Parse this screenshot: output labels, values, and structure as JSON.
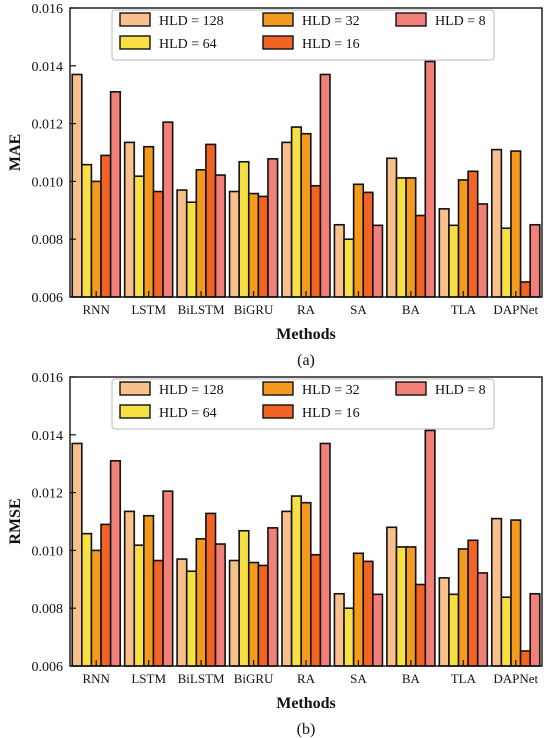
{
  "colors": {
    "HLD = 128": "#F8C08A",
    "HLD = 64": "#F6E044",
    "HLD = 32": "#F49A1C",
    "HLD = 16": "#F26424",
    "HLD = 8": "#F08078"
  },
  "chart_data": [
    {
      "type": "bar",
      "panel_label": "(a)",
      "xlabel": "Methods",
      "ylabel": "MAE",
      "ylim": [
        0.006,
        0.016
      ],
      "yticks": [
        "0.006",
        "0.008",
        "0.010",
        "0.012",
        "0.014",
        "0.016"
      ],
      "legend_position": "top",
      "categories": [
        "RNN",
        "LSTM",
        "BiLSTM",
        "BiGRU",
        "RA",
        "SA",
        "BA",
        "TLA",
        "DAPNet"
      ],
      "series": [
        {
          "name": "HLD = 128",
          "values": [
            0.0137,
            0.01135,
            0.0097,
            0.00965,
            0.01135,
            0.0085,
            0.0108,
            0.00905,
            0.0111
          ]
        },
        {
          "name": "HLD = 64",
          "values": [
            0.01058,
            0.01018,
            0.00928,
            0.01068,
            0.01188,
            0.008,
            0.01012,
            0.00848,
            0.00838
          ]
        },
        {
          "name": "HLD = 32",
          "values": [
            0.01,
            0.0112,
            0.0104,
            0.00958,
            0.01165,
            0.0099,
            0.01012,
            0.01005,
            0.01105
          ]
        },
        {
          "name": "HLD = 16",
          "values": [
            0.0109,
            0.00965,
            0.01128,
            0.00948,
            0.00985,
            0.00962,
            0.00882,
            0.01035,
            0.00652
          ]
        },
        {
          "name": "HLD = 8",
          "values": [
            0.0131,
            0.01205,
            0.01022,
            0.01078,
            0.0137,
            0.00848,
            0.01415,
            0.00922,
            0.0085
          ]
        }
      ]
    },
    {
      "type": "bar",
      "panel_label": "(b)",
      "xlabel": "Methods",
      "ylabel": "RMSE",
      "ylim": [
        0.006,
        0.016
      ],
      "yticks": [
        "0.006",
        "0.008",
        "0.010",
        "0.012",
        "0.014",
        "0.016"
      ],
      "legend_position": "top",
      "categories": [
        "RNN",
        "LSTM",
        "BiLSTM",
        "BiGRU",
        "RA",
        "SA",
        "BA",
        "TLA",
        "DAPNet"
      ],
      "series": [
        {
          "name": "HLD = 128",
          "values": [
            0.0137,
            0.01135,
            0.0097,
            0.00965,
            0.01135,
            0.0085,
            0.0108,
            0.00905,
            0.0111
          ]
        },
        {
          "name": "HLD = 64",
          "values": [
            0.01058,
            0.01018,
            0.00928,
            0.01068,
            0.01188,
            0.008,
            0.01012,
            0.00848,
            0.00838
          ]
        },
        {
          "name": "HLD = 32",
          "values": [
            0.01,
            0.0112,
            0.0104,
            0.00958,
            0.01165,
            0.0099,
            0.01012,
            0.01005,
            0.01105
          ]
        },
        {
          "name": "HLD = 16",
          "values": [
            0.0109,
            0.00965,
            0.01128,
            0.00948,
            0.00985,
            0.00962,
            0.00882,
            0.01035,
            0.00652
          ]
        },
        {
          "name": "HLD = 8",
          "values": [
            0.0131,
            0.01205,
            0.01022,
            0.01078,
            0.0137,
            0.00848,
            0.01415,
            0.00922,
            0.0085
          ]
        }
      ]
    }
  ]
}
